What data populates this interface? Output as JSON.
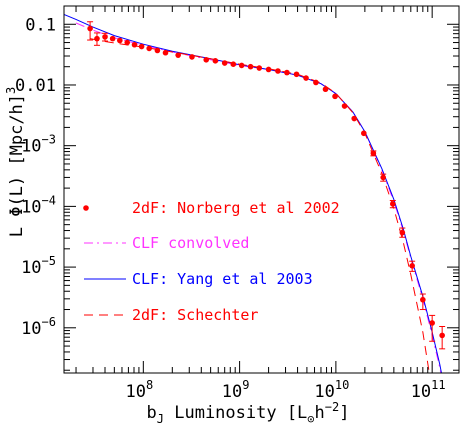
{
  "chart_data": {
    "type": "scatter",
    "xlabel": {
      "main": "b",
      "sub": "J",
      "rest": " Luminosity [L",
      "odot": "⊙",
      "h": "h",
      "sup": "−2",
      "close": "]"
    },
    "ylabel": {
      "pre": "L Φ(L) [Mpc/h]",
      "sup": "3"
    },
    "x_log": true,
    "y_log": true,
    "xlim": [
      15000000.0,
      190000000000.0
    ],
    "ylim": [
      1.8e-07,
      0.2
    ],
    "x_ticks": [
      {
        "value": 100000000.0,
        "base": "10",
        "exp": "8"
      },
      {
        "value": 1000000000.0,
        "base": "10",
        "exp": "9"
      },
      {
        "value": 10000000000.0,
        "base": "10",
        "exp": "10"
      },
      {
        "value": 100000000000.0,
        "base": "10",
        "exp": "11"
      }
    ],
    "y_ticks": [
      {
        "value": 0.1,
        "label": "0.1"
      },
      {
        "value": 0.01,
        "label": "0.01"
      },
      {
        "value": 0.001,
        "base": "10",
        "exp": "−3"
      },
      {
        "value": 0.0001,
        "base": "10",
        "exp": "−4"
      },
      {
        "value": 1e-05,
        "base": "10",
        "exp": "−5"
      },
      {
        "value": 1e-06,
        "base": "10",
        "exp": "−6"
      }
    ],
    "legend_position": "left",
    "series": [
      {
        "name": "2dF: Norberg et al 2002",
        "kind": "points",
        "color": "#ff0000",
        "points": [
          {
            "x": 28000000.0,
            "y": 0.085,
            "ylo": 0.055,
            "yhi": 0.11
          },
          {
            "x": 33000000.0,
            "y": 0.058,
            "ylo": 0.045,
            "yhi": 0.072
          },
          {
            "x": 40000000.0,
            "y": 0.062,
            "ylo": 0.053,
            "yhi": 0.071
          },
          {
            "x": 48000000.0,
            "y": 0.058
          },
          {
            "x": 57000000.0,
            "y": 0.054
          },
          {
            "x": 68000000.0,
            "y": 0.05
          },
          {
            "x": 81000000.0,
            "y": 0.046
          },
          {
            "x": 96000000.0,
            "y": 0.043
          },
          {
            "x": 115000000.0,
            "y": 0.04
          },
          {
            "x": 140000000.0,
            "y": 0.037
          },
          {
            "x": 170000000.0,
            "y": 0.034
          },
          {
            "x": 230000000.0,
            "y": 0.031
          },
          {
            "x": 320000000.0,
            "y": 0.029
          },
          {
            "x": 450000000.0,
            "y": 0.026
          },
          {
            "x": 560000000.0,
            "y": 0.025
          },
          {
            "x": 700000000.0,
            "y": 0.023
          },
          {
            "x": 860000000.0,
            "y": 0.022
          },
          {
            "x": 1050000000.0,
            "y": 0.021
          },
          {
            "x": 1300000000.0,
            "y": 0.02
          },
          {
            "x": 1600000000.0,
            "y": 0.019
          },
          {
            "x": 2000000000.0,
            "y": 0.018
          },
          {
            "x": 2500000000.0,
            "y": 0.017
          },
          {
            "x": 3100000000.0,
            "y": 0.016
          },
          {
            "x": 3900000000.0,
            "y": 0.015
          },
          {
            "x": 4900000000.0,
            "y": 0.013
          },
          {
            "x": 6200000000.0,
            "y": 0.011
          },
          {
            "x": 7800000000.0,
            "y": 0.0085
          },
          {
            "x": 9800000000.0,
            "y": 0.0065
          },
          {
            "x": 12300000000.0,
            "y": 0.0045
          },
          {
            "x": 15500000000.0,
            "y": 0.0028
          },
          {
            "x": 19500000000.0,
            "y": 0.0016
          },
          {
            "x": 24500000000.0,
            "y": 0.00075,
            "ylo": 0.00068,
            "yhi": 0.00082
          },
          {
            "x": 31000000000.0,
            "y": 0.0003,
            "ylo": 0.00026,
            "yhi": 0.00034
          },
          {
            "x": 39000000000.0,
            "y": 0.00011,
            "ylo": 9.5e-05,
            "yhi": 0.000125
          },
          {
            "x": 49000000000.0,
            "y": 3.7e-05,
            "ylo": 3.1e-05,
            "yhi": 4.4e-05
          },
          {
            "x": 62000000000.0,
            "y": 1.05e-05,
            "ylo": 8.5e-06,
            "yhi": 1.25e-05
          },
          {
            "x": 80000000000.0,
            "y": 2.9e-06,
            "ylo": 2e-06,
            "yhi": 3.6e-06
          },
          {
            "x": 100000000000.0,
            "y": 1.2e-06,
            "ylo": 6e-07,
            "yhi": 1.6e-06
          },
          {
            "x": 127000000000.0,
            "y": 7.5e-07,
            "ylo": 4.5e-07,
            "yhi": 1.05e-06
          }
        ]
      },
      {
        "name": "CLF convolved",
        "kind": "line",
        "dash": "dashdot",
        "color": "#ff33ff",
        "x": [
          20000000.0,
          30000000.0,
          50000000.0,
          100000000.0,
          200000000.0,
          500000000.0,
          1000000000.0,
          2000000000.0,
          4000000000.0,
          7000000000.0,
          10000000000.0,
          15000000000.0,
          20000000000.0,
          30000000000.0,
          40000000000.0,
          50000000000.0,
          60000000000.0,
          80000000000.0,
          100000000000.0,
          120000000000.0,
          140000000000.0
        ],
        "y": [
          0.105,
          0.08,
          0.06,
          0.045,
          0.035,
          0.026,
          0.021,
          0.018,
          0.0145,
          0.0105,
          0.0072,
          0.0036,
          0.0017,
          0.0004,
          0.00012,
          4e-05,
          1.4e-05,
          3e-06,
          7.5e-07,
          2.2e-07,
          6e-08
        ]
      },
      {
        "name": "CLF: Yang et al 2003",
        "kind": "line",
        "dash": "solid",
        "color": "#0000ff",
        "x": [
          15000000.0,
          20000000.0,
          30000000.0,
          50000000.0,
          100000000.0,
          200000000.0,
          500000000.0,
          1000000000.0,
          2000000000.0,
          4000000000.0,
          7000000000.0,
          10000000000.0,
          15000000000.0,
          20000000000.0,
          30000000000.0,
          40000000000.0,
          50000000000.0,
          60000000000.0,
          80000000000.0,
          100000000000.0,
          120000000000.0,
          140000000000.0
        ],
        "y": [
          0.145,
          0.12,
          0.09,
          0.065,
          0.047,
          0.036,
          0.027,
          0.0215,
          0.018,
          0.0145,
          0.0105,
          0.0072,
          0.0036,
          0.0017,
          0.00042,
          0.00013,
          4.3e-05,
          1.5e-05,
          3.3e-06,
          8.5e-07,
          2.5e-07,
          7e-08
        ]
      },
      {
        "name": "2dF: Schechter",
        "kind": "line",
        "dash": "dashed",
        "color": "#ff0000",
        "x": [
          28000000.0,
          40000000.0,
          60000000.0,
          100000000.0,
          200000000.0,
          500000000.0,
          1000000000.0,
          2000000000.0,
          4000000000.0,
          7000000000.0,
          10000000000.0,
          15000000000.0,
          20000000000.0,
          30000000000.0,
          40000000000.0,
          50000000000.0,
          60000000000.0,
          80000000000.0,
          100000000000.0
        ],
        "y": [
          0.058,
          0.052,
          0.047,
          0.042,
          0.035,
          0.027,
          0.022,
          0.0185,
          0.015,
          0.0108,
          0.0073,
          0.0035,
          0.0016,
          0.00035,
          9.2e-05,
          2.6e-05,
          7.5e-06,
          8.5e-07,
          9e-08
        ]
      }
    ]
  }
}
